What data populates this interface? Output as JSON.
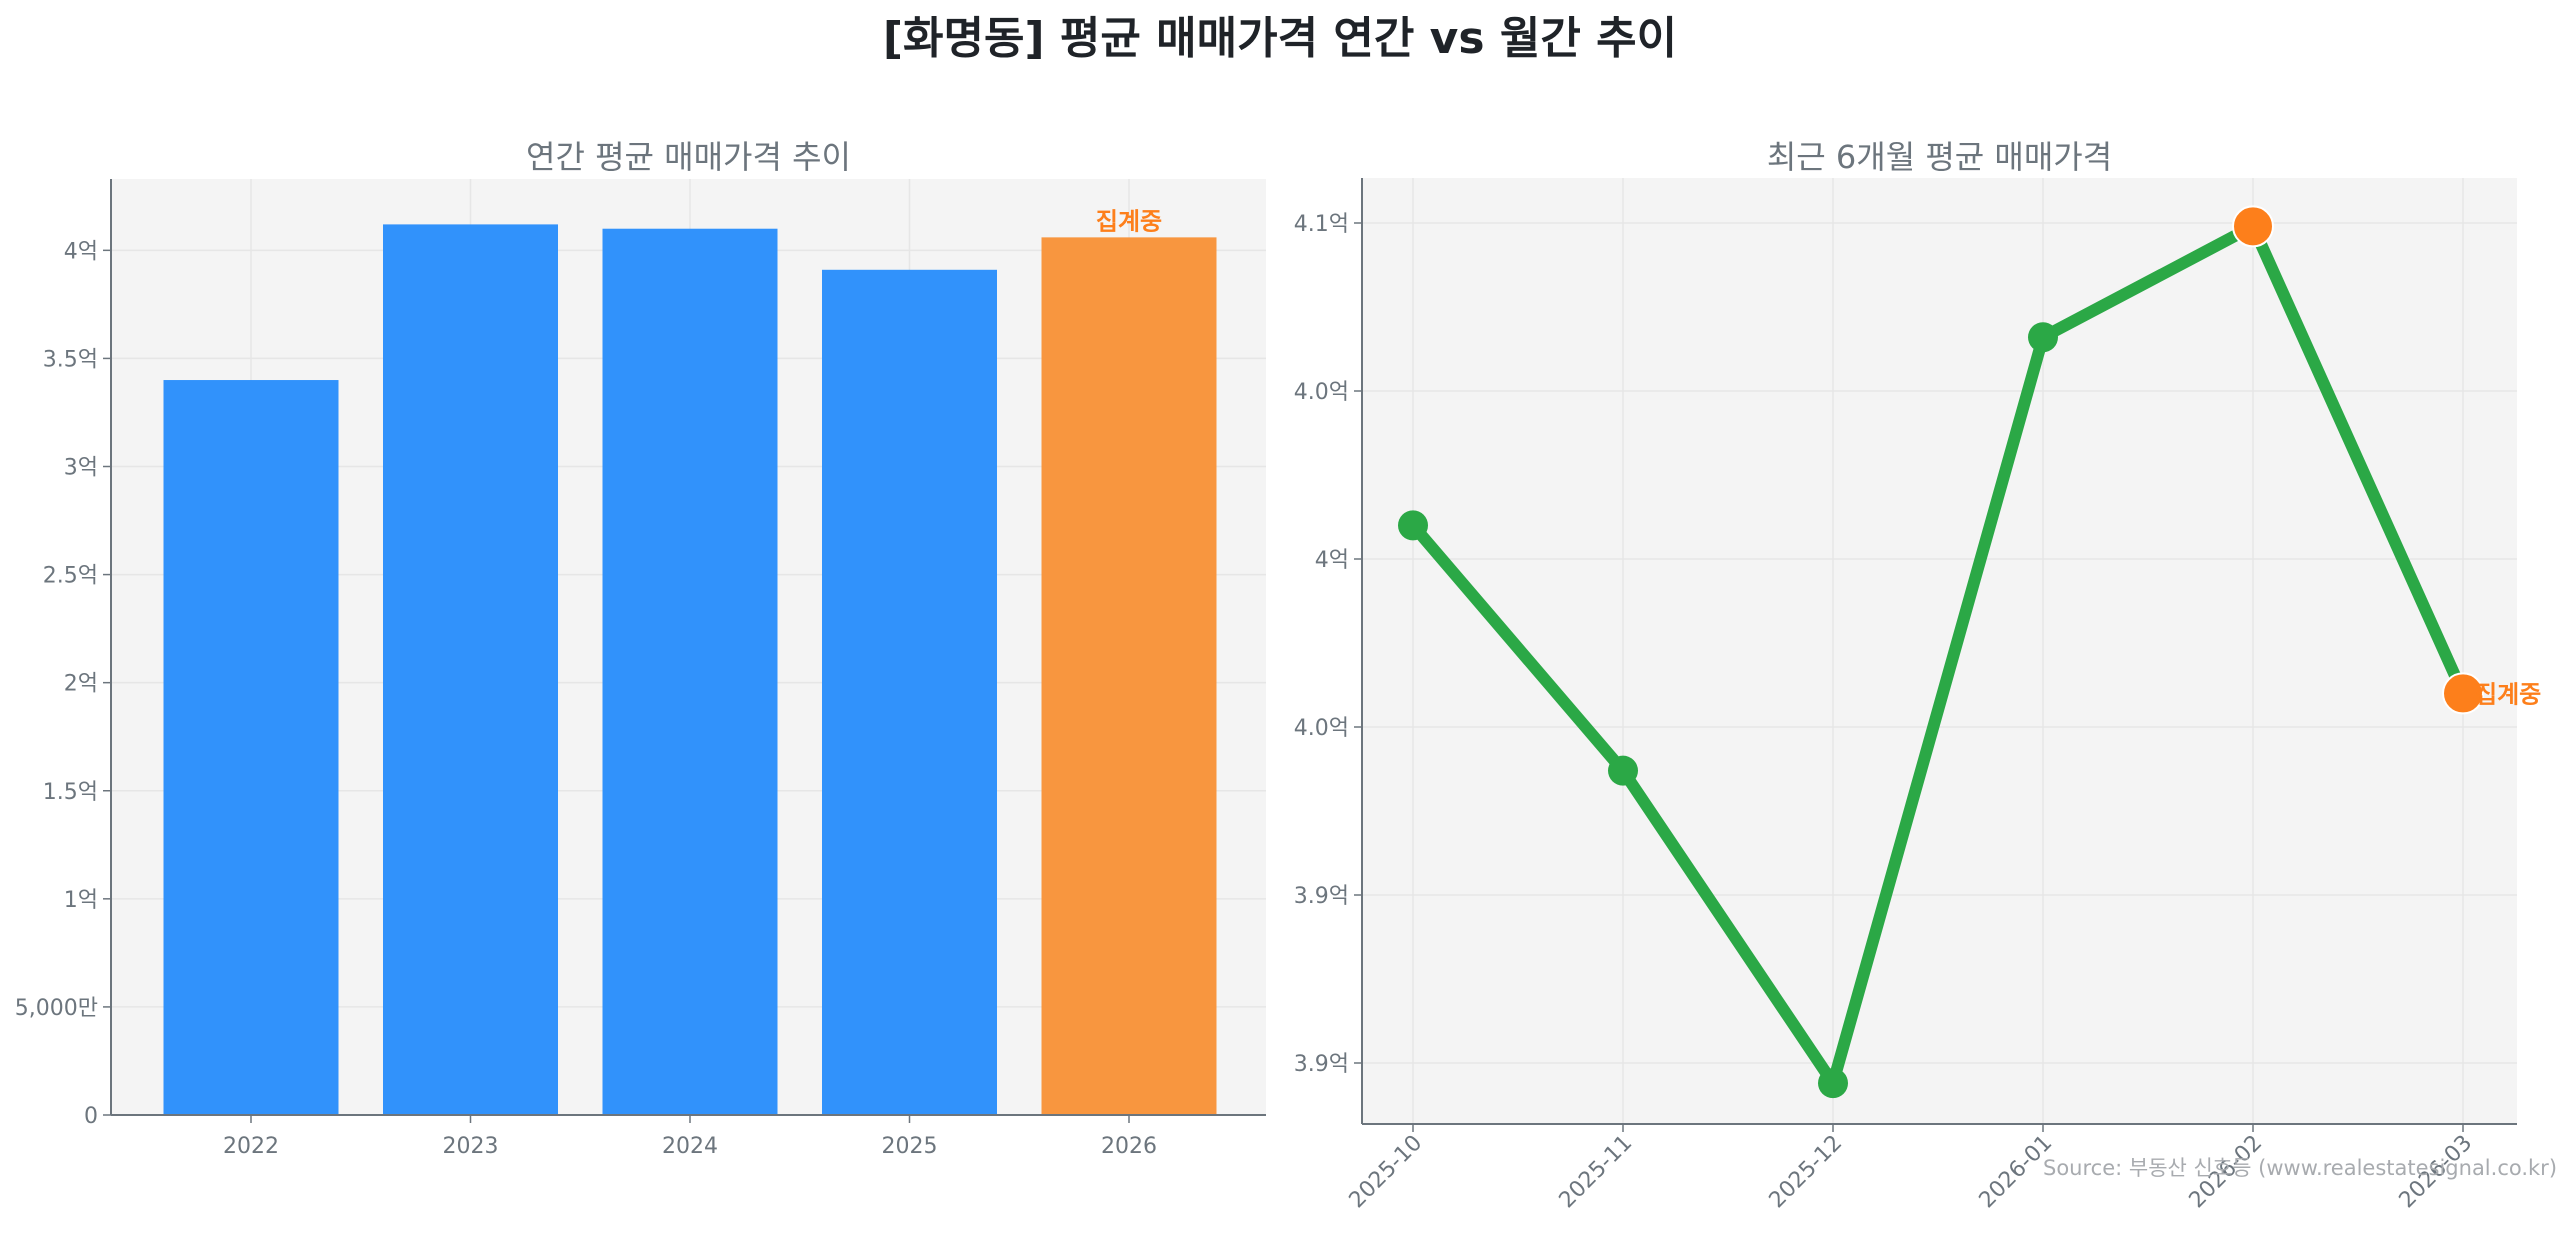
{
  "title": "[화명동] 평균 매매가격 연간 vs 월간 추이",
  "source": "Source: 부동산 신호등 (www.realestatesignal.co.kr)",
  "colors": {
    "bar": "#3192fb",
    "bar_current": "#f8963f",
    "line": "#2ba846",
    "marker": "#2ba846",
    "marker_highlight": "#fd7f1b",
    "annotation": "#fd7f1b",
    "axis_text": "#6c757d",
    "plot_bg": "#f4f4f4",
    "grid": "#e6e6e6"
  },
  "chart_data": [
    {
      "type": "bar",
      "title": "연간 평균 매매가격 추이",
      "xlabel": "",
      "ylabel": "",
      "categories": [
        "2022",
        "2023",
        "2024",
        "2025",
        "2026"
      ],
      "values": [
        340000000,
        412000000,
        410000000,
        391000000,
        406000000
      ],
      "values_eok": [
        3.4,
        4.12,
        4.1,
        3.91,
        4.06
      ],
      "highlight_index": 4,
      "annotation": {
        "index": 4,
        "text": "집계중"
      },
      "yticks": [
        0,
        0.5,
        1,
        1.5,
        2,
        2.5,
        3,
        3.5,
        4
      ],
      "ytick_labels": [
        "0",
        "5,000만",
        "1억",
        "1.5억",
        "2억",
        "2.5억",
        "3억",
        "3.5억",
        "4억"
      ],
      "ylim": [
        0,
        4.33
      ],
      "grid": true
    },
    {
      "type": "line",
      "title": "최근 6개월 평균 매매가격",
      "xlabel": "",
      "ylabel": "",
      "x": [
        "2025-10",
        "2025-11",
        "2025-12",
        "2026-01",
        "2026-02",
        "2026-03"
      ],
      "values": [
        401000000,
        393700000,
        384400000,
        406600000,
        409900000,
        396000000
      ],
      "values_eok": [
        4.01,
        3.937,
        3.844,
        4.066,
        4.099,
        3.96
      ],
      "highlight_indices": [
        4,
        5
      ],
      "annotation": {
        "index": 5,
        "text": "집계중"
      },
      "yticks": [
        3.85,
        3.9,
        3.95,
        4.0,
        4.05,
        4.1
      ],
      "ytick_labels": [
        "3.9억",
        "3.9억",
        "4.0억",
        "4억",
        "4.0억",
        "4.1억"
      ],
      "ylim": [
        3.832,
        4.113
      ],
      "grid": true,
      "xtick_rotation": 45
    }
  ]
}
